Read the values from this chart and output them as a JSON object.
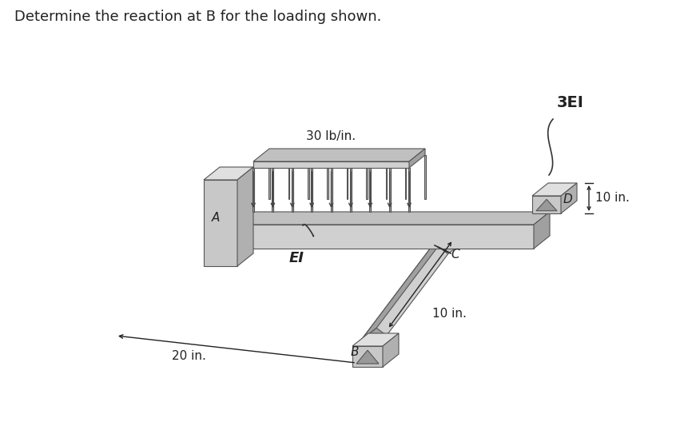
{
  "title": "Determine the reaction at B for the loading shown.",
  "title_fontsize": 13,
  "title_color": "#222222",
  "background_color": "#ffffff",
  "label_A": "A",
  "label_B": "B",
  "label_C": "C",
  "label_D": "D",
  "label_EI": "EI",
  "label_3EI": "3EI",
  "label_load": "30 lb/in.",
  "label_20in": "20 in.",
  "label_10in_BC": "10 in.",
  "label_10in_D": "10 in.",
  "c_face": "#d0d0d0",
  "c_top": "#c0c0c0",
  "c_side": "#a0a0a0",
  "c_wall_face": "#c8c8c8",
  "c_wall_top": "#e0e0e0",
  "c_wall_side": "#b0b0b0",
  "c_edge": "#555555",
  "label_fontsize": 11,
  "dim_fontsize": 11
}
